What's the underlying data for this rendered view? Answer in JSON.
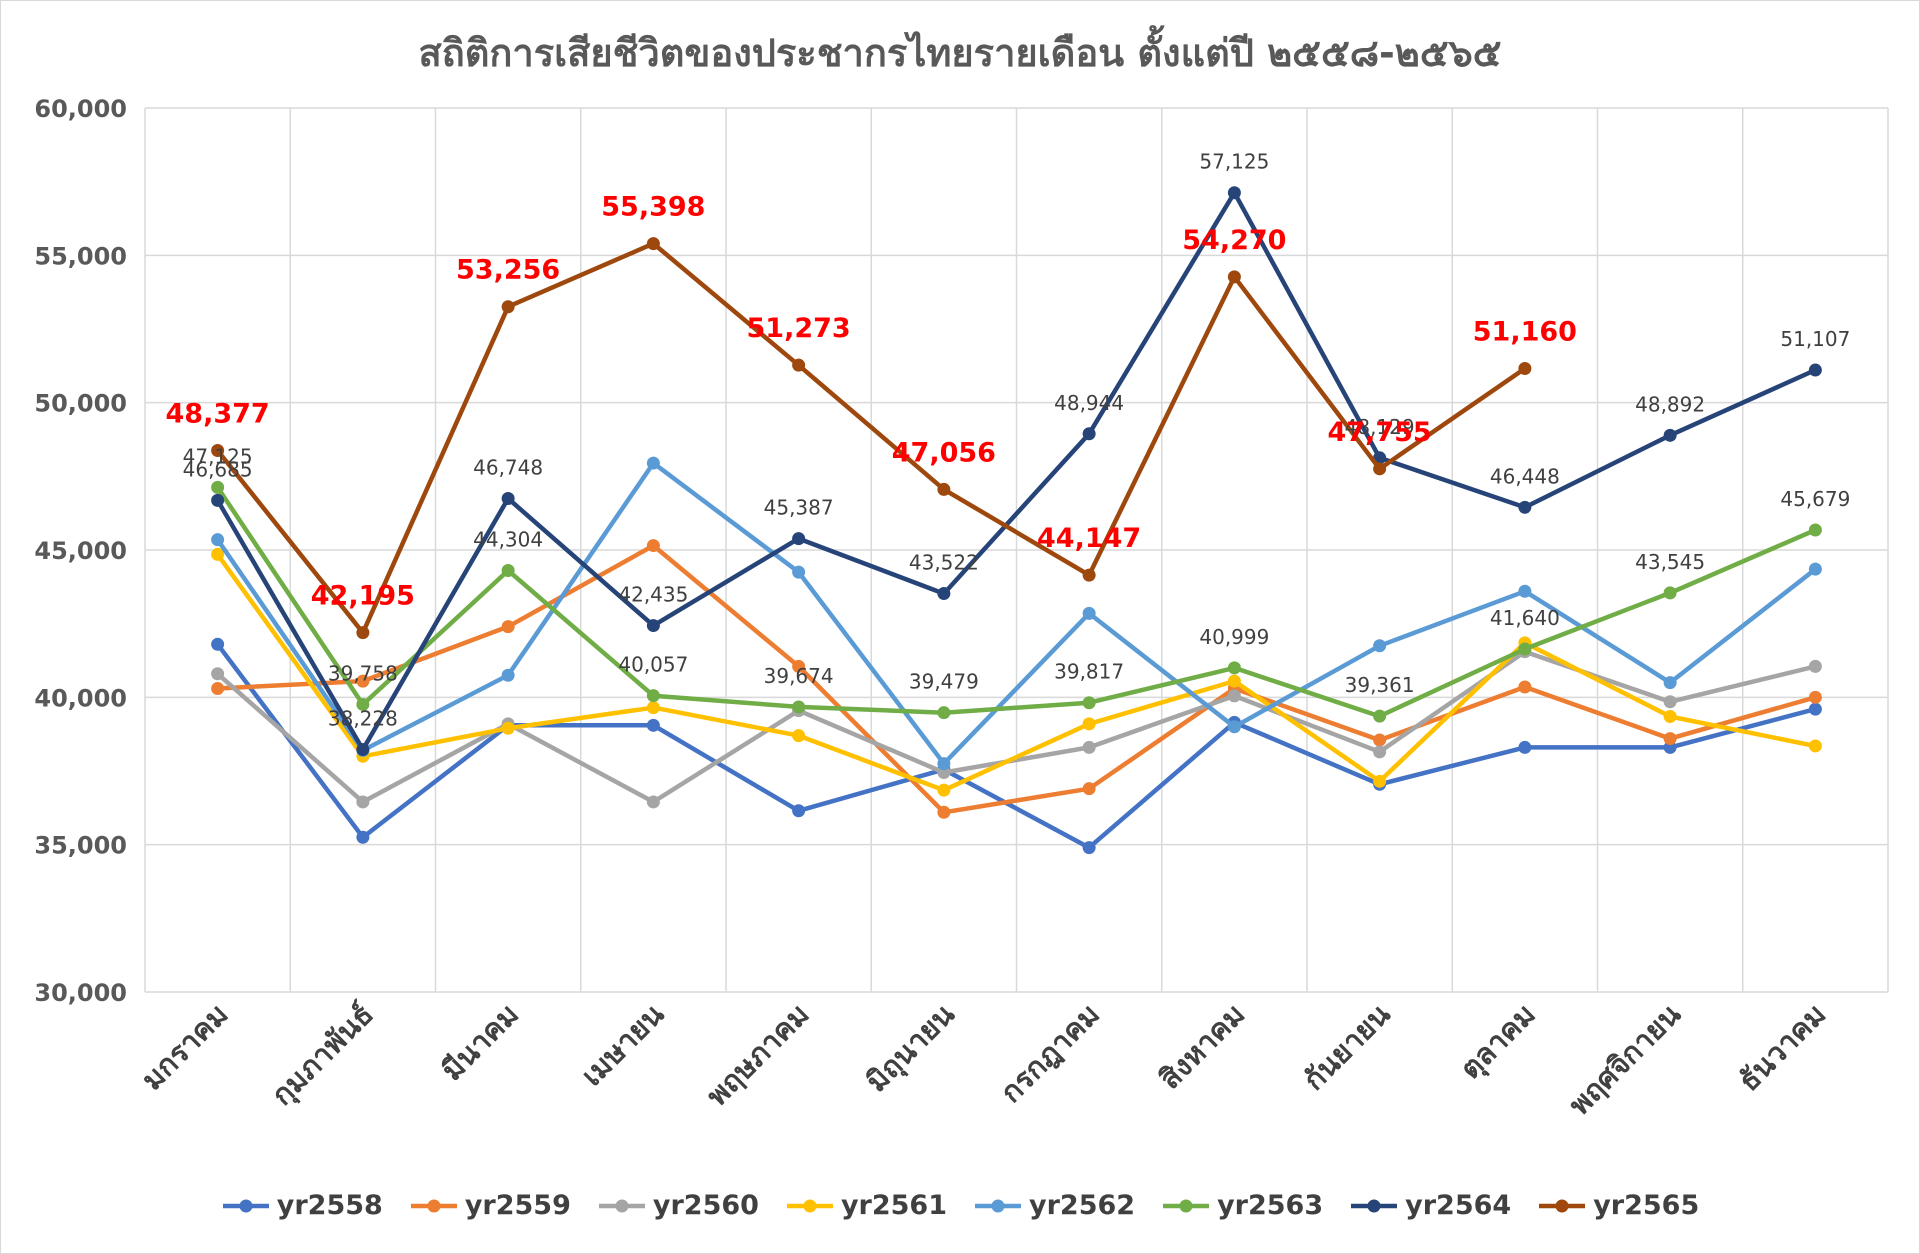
{
  "chart_data": {
    "type": "line",
    "title": "สถิติการเสียชีวิตของประชากรไทยรายเดือน ตั้งแต่ปี ๒๕๕๘-๒๕๖๕",
    "xlabel": "",
    "ylabel": "",
    "ylim": [
      30000,
      60000
    ],
    "yticks": [
      30000,
      35000,
      40000,
      45000,
      50000,
      55000,
      60000
    ],
    "ytick_labels": [
      "30,000",
      "35,000",
      "40,000",
      "45,000",
      "50,000",
      "55,000",
      "60,000"
    ],
    "grid": true,
    "legend_position": "bottom",
    "categories": [
      "มกราคม",
      "กุมภาพันธ์",
      "มีนาคม",
      "เมษายน",
      "พฤษภาคม",
      "มิถุนายน",
      "กรกฎาคม",
      "สิงหาคม",
      "กันยายน",
      "ตุลาคม",
      "พฤศจิกายน",
      "ธันวาคม"
    ],
    "series": [
      {
        "name": "yr2558",
        "color": "#4472C4",
        "values": [
          41800,
          35250,
          39050,
          39050,
          36150,
          37550,
          34900,
          39150,
          37050,
          38300,
          38300,
          39600
        ]
      },
      {
        "name": "yr2559",
        "color": "#ED7D31",
        "values": [
          40300,
          40550,
          42400,
          45150,
          41050,
          36100,
          36900,
          40300,
          38550,
          40350,
          38600,
          40000
        ]
      },
      {
        "name": "yr2560",
        "color": "#A5A5A5",
        "values": [
          40800,
          36450,
          39100,
          36450,
          39550,
          37450,
          38300,
          40050,
          38150,
          41550,
          39850,
          41050
        ]
      },
      {
        "name": "yr2561",
        "color": "#FFC000",
        "values": [
          44850,
          38000,
          38950,
          39650,
          38700,
          36850,
          39100,
          40550,
          37150,
          41850,
          39350,
          38350
        ]
      },
      {
        "name": "yr2562",
        "color": "#5B9BD5",
        "values": [
          45350,
          38200,
          40750,
          47950,
          44250,
          37750,
          42850,
          39000,
          41750,
          43600,
          40500,
          44350
        ]
      },
      {
        "name": "yr2563",
        "color": "#70AD47",
        "values": [
          47125,
          39758,
          44304,
          40057,
          39674,
          39479,
          39817,
          40999,
          39361,
          41640,
          43545,
          45679
        ]
      },
      {
        "name": "yr2564",
        "color": "#264478",
        "values": [
          46685,
          38228,
          46748,
          42435,
          45387,
          43522,
          48944,
          57125,
          48129,
          46448,
          48892,
          51107
        ]
      },
      {
        "name": "yr2565",
        "color": "#9E480E",
        "values": [
          48377,
          42195,
          53256,
          55398,
          51273,
          47056,
          44147,
          54270,
          47755,
          51160,
          null,
          null
        ]
      }
    ],
    "data_labels": {
      "yr2563": [
        "47,125",
        "39,758",
        "44,304",
        "40,057",
        "39,674",
        "39,479",
        "39,817",
        "40,999",
        "39,361",
        "41,640",
        "43,545",
        "45,679"
      ],
      "yr2564": [
        "46,685",
        "38,228",
        "46,748",
        "42,435",
        "45,387",
        "43,522",
        "48,944",
        "57,125",
        "48,129",
        "46,448",
        "48,892",
        "51,107"
      ],
      "yr2565": [
        "48,377",
        "42,195",
        "53,256",
        "55,398",
        "51,273",
        "47,056",
        "44,147",
        "54,270",
        "47,755",
        "51,160"
      ]
    },
    "highlight_label_color": "#FF0000"
  }
}
